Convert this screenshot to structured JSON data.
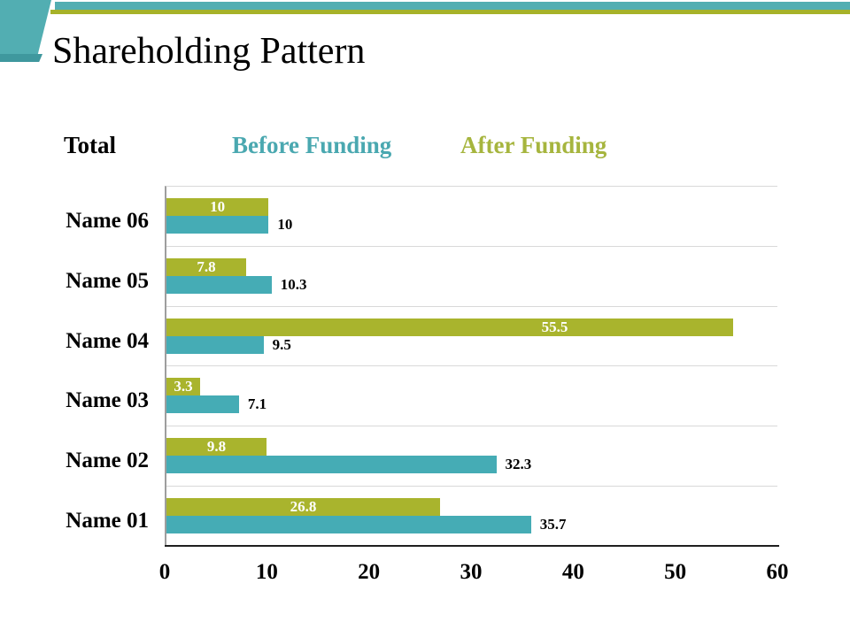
{
  "slide": {
    "title": "Shareholding Pattern"
  },
  "legend": {
    "total_label": "Total",
    "before_label": "Before Funding",
    "after_label": "After Funding"
  },
  "colors": {
    "banner_teal": "#52AEB2",
    "banner_teal_dark": "#3F989E",
    "banner_olive": "#A6B229",
    "bar_teal": "#45ACB5",
    "bar_green": "#A9B42D",
    "legend_teal": "#4AA8B0",
    "legend_green": "#A6B53E",
    "gridline": "#D9D9D9",
    "y_axis_line": "#9E9E9E",
    "x_axis_line": "#1F1F1F"
  },
  "chart_data": {
    "type": "bar",
    "orientation": "horizontal",
    "title": "",
    "xlabel": "",
    "ylabel": "",
    "xlim": [
      0,
      60
    ],
    "x_ticks": [
      0,
      10,
      20,
      30,
      40,
      50,
      60
    ],
    "grid": "category-separators",
    "legend_position": "top",
    "categories": [
      "Name 06",
      "Name 05",
      "Name 04",
      "Name 03",
      "Name 02",
      "Name 01"
    ],
    "series": [
      {
        "name": "After Funding",
        "color": "#A9B42D",
        "label_position": "inside",
        "values": [
          10,
          7.8,
          55.5,
          3.3,
          9.8,
          26.8
        ]
      },
      {
        "name": "Before Funding",
        "color": "#45ACB5",
        "label_position": "outside",
        "values": [
          10,
          10.3,
          9.5,
          7.1,
          32.3,
          35.7
        ]
      }
    ]
  }
}
